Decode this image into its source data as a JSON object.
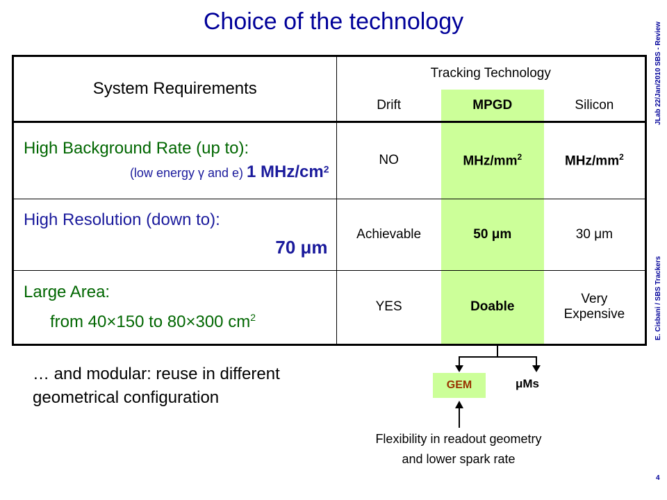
{
  "title": "Choice of the technology",
  "side_text_top": "JLab 22/Jan/2010 SBS - Review",
  "side_text_bottom": "E. Cisbani / SBS Trackers",
  "page_number": "4",
  "table": {
    "header_left": "System Requirements",
    "header_group": "Tracking Technology",
    "columns": [
      "Drift",
      "MPGD",
      "Silicon"
    ],
    "rows": [
      {
        "req_title": "High Background Rate (up to):",
        "req_detail_prefix": "(low energy ",
        "req_detail_gamma": "γ",
        "req_detail_mid": " and e) ",
        "req_value": "1 MHz/cm",
        "req_value_sup": "2",
        "drift": "NO",
        "mpgd": "MHz/mm",
        "mpgd_sup": "2",
        "silicon": "MHz/mm",
        "silicon_sup": "2"
      },
      {
        "req_title": "High Resolution (down to):",
        "req_value": "70 μm",
        "drift": "Achievable",
        "mpgd": "50 μm",
        "silicon": "30 μm"
      },
      {
        "req_title": "Large Area:",
        "req_value": "from 40×150 to 80×300 cm",
        "req_value_sup": "2",
        "drift": "YES",
        "mpgd": "Doable",
        "silicon_line1": "Very",
        "silicon_line2": "Expensive"
      }
    ]
  },
  "modular_text": "… and modular: reuse in different geometrical configuration",
  "diagram": {
    "gem_label": "GEM",
    "ums_label": "μMs",
    "flex_line1": "Flexibility in readout geometry",
    "flex_line2": "and lower spark rate"
  }
}
